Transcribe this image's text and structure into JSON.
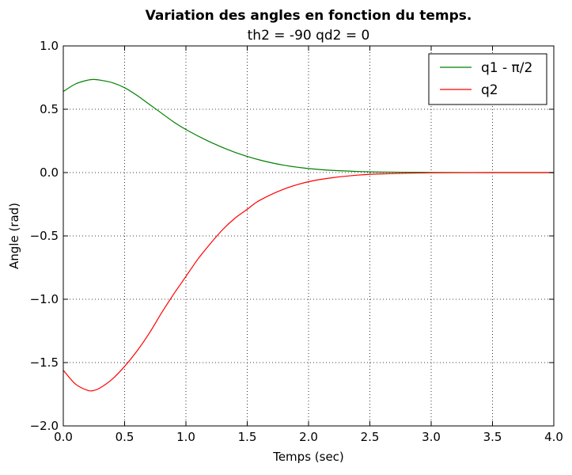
{
  "chart_data": {
    "type": "line",
    "title": "Variation des angles en fonction du temps.",
    "subtitle": "th2 = -90 qd2 = 0",
    "xlabel": "Temps (sec)",
    "ylabel": "Angle (rad)",
    "xlim": [
      0.0,
      4.0
    ],
    "ylim": [
      -2.0,
      1.0
    ],
    "xticks": [
      "0.0",
      "0.5",
      "1.0",
      "1.5",
      "2.0",
      "2.5",
      "3.0",
      "3.5",
      "4.0"
    ],
    "yticks": [
      "1.0",
      "0.5",
      "0.0",
      "−0.5",
      "−1.0",
      "−1.5",
      "−2.0"
    ],
    "grid": true,
    "legend_position": "top-right",
    "series": [
      {
        "name": "q1 - π/2",
        "color": "#008000",
        "x": [
          0.0,
          0.1,
          0.2,
          0.25,
          0.3,
          0.4,
          0.5,
          0.6,
          0.7,
          0.8,
          0.9,
          1.0,
          1.2,
          1.4,
          1.6,
          1.8,
          2.0,
          2.2,
          2.4,
          2.5,
          2.6,
          3.0,
          3.5,
          4.0
        ],
        "y": [
          0.64,
          0.7,
          0.73,
          0.735,
          0.73,
          0.71,
          0.67,
          0.61,
          0.54,
          0.47,
          0.4,
          0.34,
          0.24,
          0.16,
          0.1,
          0.058,
          0.032,
          0.017,
          0.009,
          0.006,
          0.004,
          0.001,
          0.0,
          0.0
        ]
      },
      {
        "name": "q2",
        "color": "#ff0000",
        "x": [
          0.0,
          0.1,
          0.2,
          0.25,
          0.3,
          0.4,
          0.5,
          0.6,
          0.7,
          0.8,
          0.9,
          1.0,
          1.1,
          1.2,
          1.3,
          1.4,
          1.5,
          1.6,
          1.8,
          2.0,
          2.2,
          2.4,
          2.6,
          3.0,
          3.5,
          4.0
        ],
        "y": [
          -1.56,
          -1.67,
          -1.72,
          -1.72,
          -1.7,
          -1.63,
          -1.53,
          -1.41,
          -1.27,
          -1.11,
          -0.96,
          -0.82,
          -0.68,
          -0.56,
          -0.45,
          -0.36,
          -0.29,
          -0.22,
          -0.13,
          -0.072,
          -0.04,
          -0.02,
          -0.01,
          -0.002,
          0.0,
          0.0
        ]
      }
    ]
  }
}
